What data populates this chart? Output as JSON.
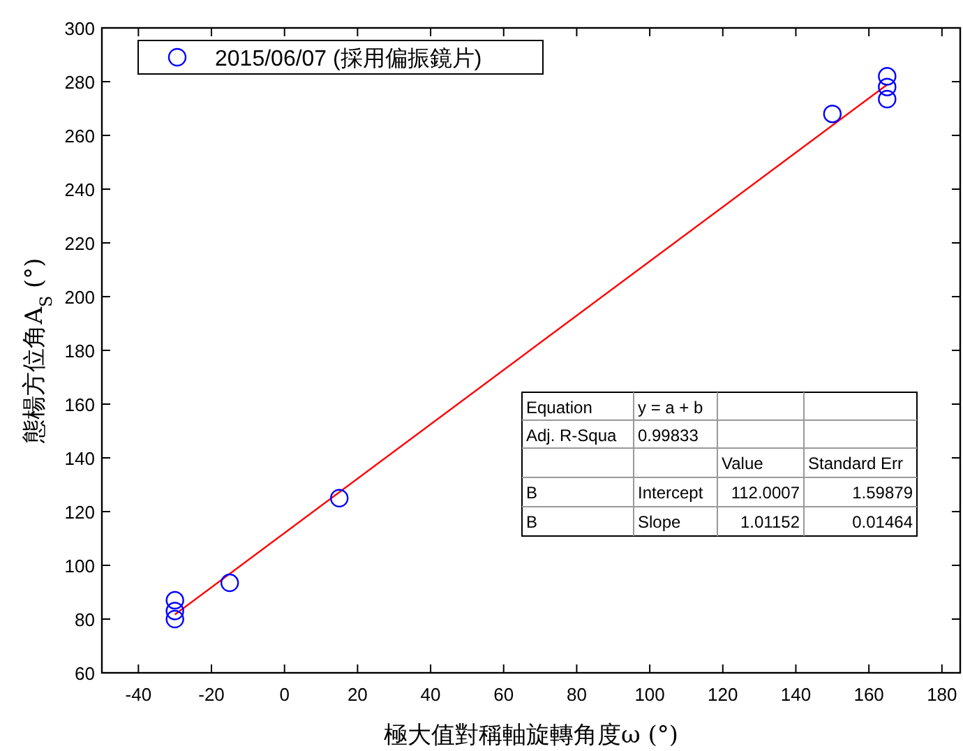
{
  "chart_data": {
    "type": "scatter",
    "xlabel": "極大值對稱軸旋轉角度ω (°)",
    "ylabel": "態楊方位角A$_{S}$ (°)",
    "xlim": [
      -50,
      185
    ],
    "ylim": [
      60,
      300
    ],
    "xticks": [
      -40,
      -20,
      0,
      20,
      40,
      60,
      80,
      100,
      120,
      140,
      160,
      180
    ],
    "yticks": [
      60,
      80,
      100,
      120,
      140,
      160,
      180,
      200,
      220,
      240,
      260,
      280,
      300
    ],
    "legend": "top left",
    "grid": false,
    "series": [
      {
        "type": "line",
        "marker": "none",
        "color": "#ff0000",
        "x": [
          -30,
          165
        ],
        "values": [
          81.7,
          278.9
        ]
      },
      {
        "name": "2015/06/07 (採用偏振鏡片)",
        "marker": "circle",
        "color": "#0000ff",
        "x": [
          -30,
          -30,
          -30,
          -15,
          15,
          150,
          165,
          165,
          165
        ],
        "values": [
          80,
          83,
          87,
          93.5,
          125,
          268,
          273.5,
          278,
          282
        ]
      }
    ],
    "annotations": [
      "Equation",
      "y = a + b",
      "Adj. R-Squa",
      "0.99833",
      "Value",
      "Standard Err",
      "B",
      "Intercept",
      "112.0007",
      "1.59879",
      "B",
      "Slope",
      "1.01152",
      "0.01464"
    ]
  }
}
